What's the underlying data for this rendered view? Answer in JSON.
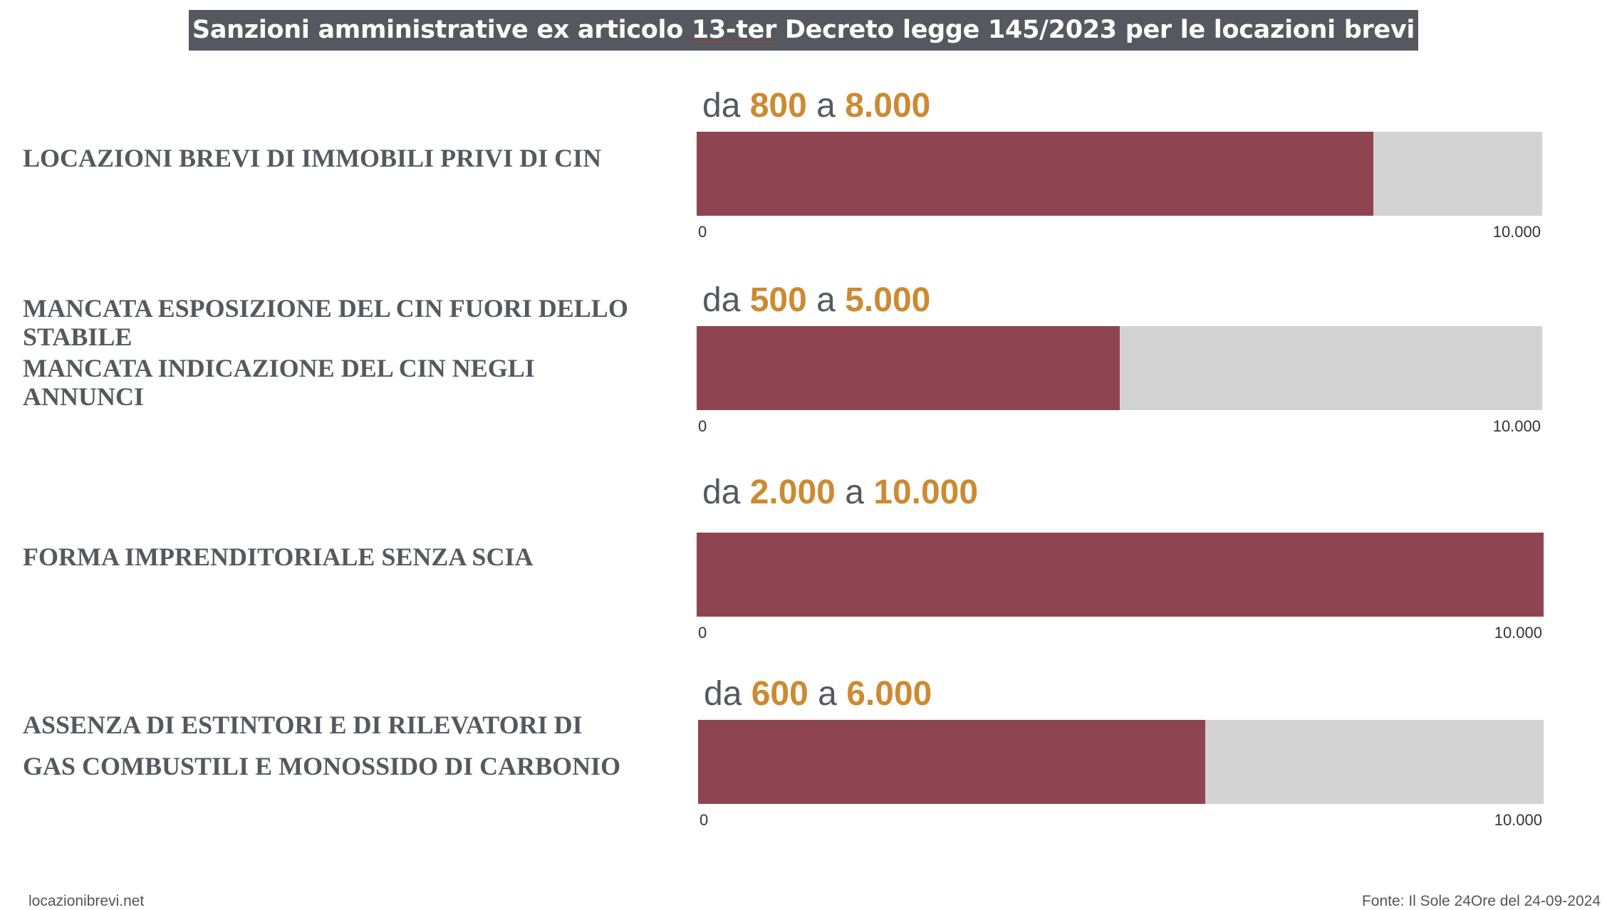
{
  "title": {
    "pre": "Sanzioni amministrative ex articolo ",
    "underlined": "13-ter",
    "post": " Decreto legge 145/2023 per le locazioni brevi"
  },
  "colors": {
    "fill": "#8f4452",
    "track": "#d3d3d3",
    "accent": "#cc8a32",
    "text": "#55595f"
  },
  "chart_data": {
    "type": "bar",
    "orientation": "horizontal",
    "xlim": [
      0,
      10000
    ],
    "tick_labels": [
      "0",
      "10.000"
    ],
    "rows": [
      {
        "label_lines": [
          "LOCAZIONI BREVI DI IMMOBILI PRIVI DI CIN"
        ],
        "range_prefix": "da",
        "min_label": "800",
        "range_joiner": "a",
        "max_label": "8.000",
        "min": 800,
        "max": 8000
      },
      {
        "label_lines": [
          "MANCATA ESPOSIZIONE DEL CIN FUORI DELLO",
          "STABILE",
          "MANCATA INDICAZIONE DEL CIN NEGLI",
          "ANNUNCI"
        ],
        "range_prefix": "da",
        "min_label": "500",
        "range_joiner": "a",
        "max_label": "5.000",
        "min": 500,
        "max": 5000
      },
      {
        "label_lines": [
          "FORMA IMPRENDITORIALE SENZA SCIA"
        ],
        "range_prefix": "da",
        "min_label": "2.000",
        "range_joiner": "a",
        "max_label": "10.000",
        "min": 2000,
        "max": 10000
      },
      {
        "label_lines": [
          "ASSENZA DI ESTINTORI E  DI RILEVATORI DI",
          "GAS COMBUSTILI E MONOSSIDO DI CARBONIO"
        ],
        "range_prefix": "da",
        "min_label": "600",
        "range_joiner": "a",
        "max_label": "6.000",
        "min": 600,
        "max": 6000
      }
    ]
  },
  "footer": {
    "left": "locazionibrevi.net",
    "right": "Fonte: Il Sole 24Ore del 24-09-2024"
  }
}
